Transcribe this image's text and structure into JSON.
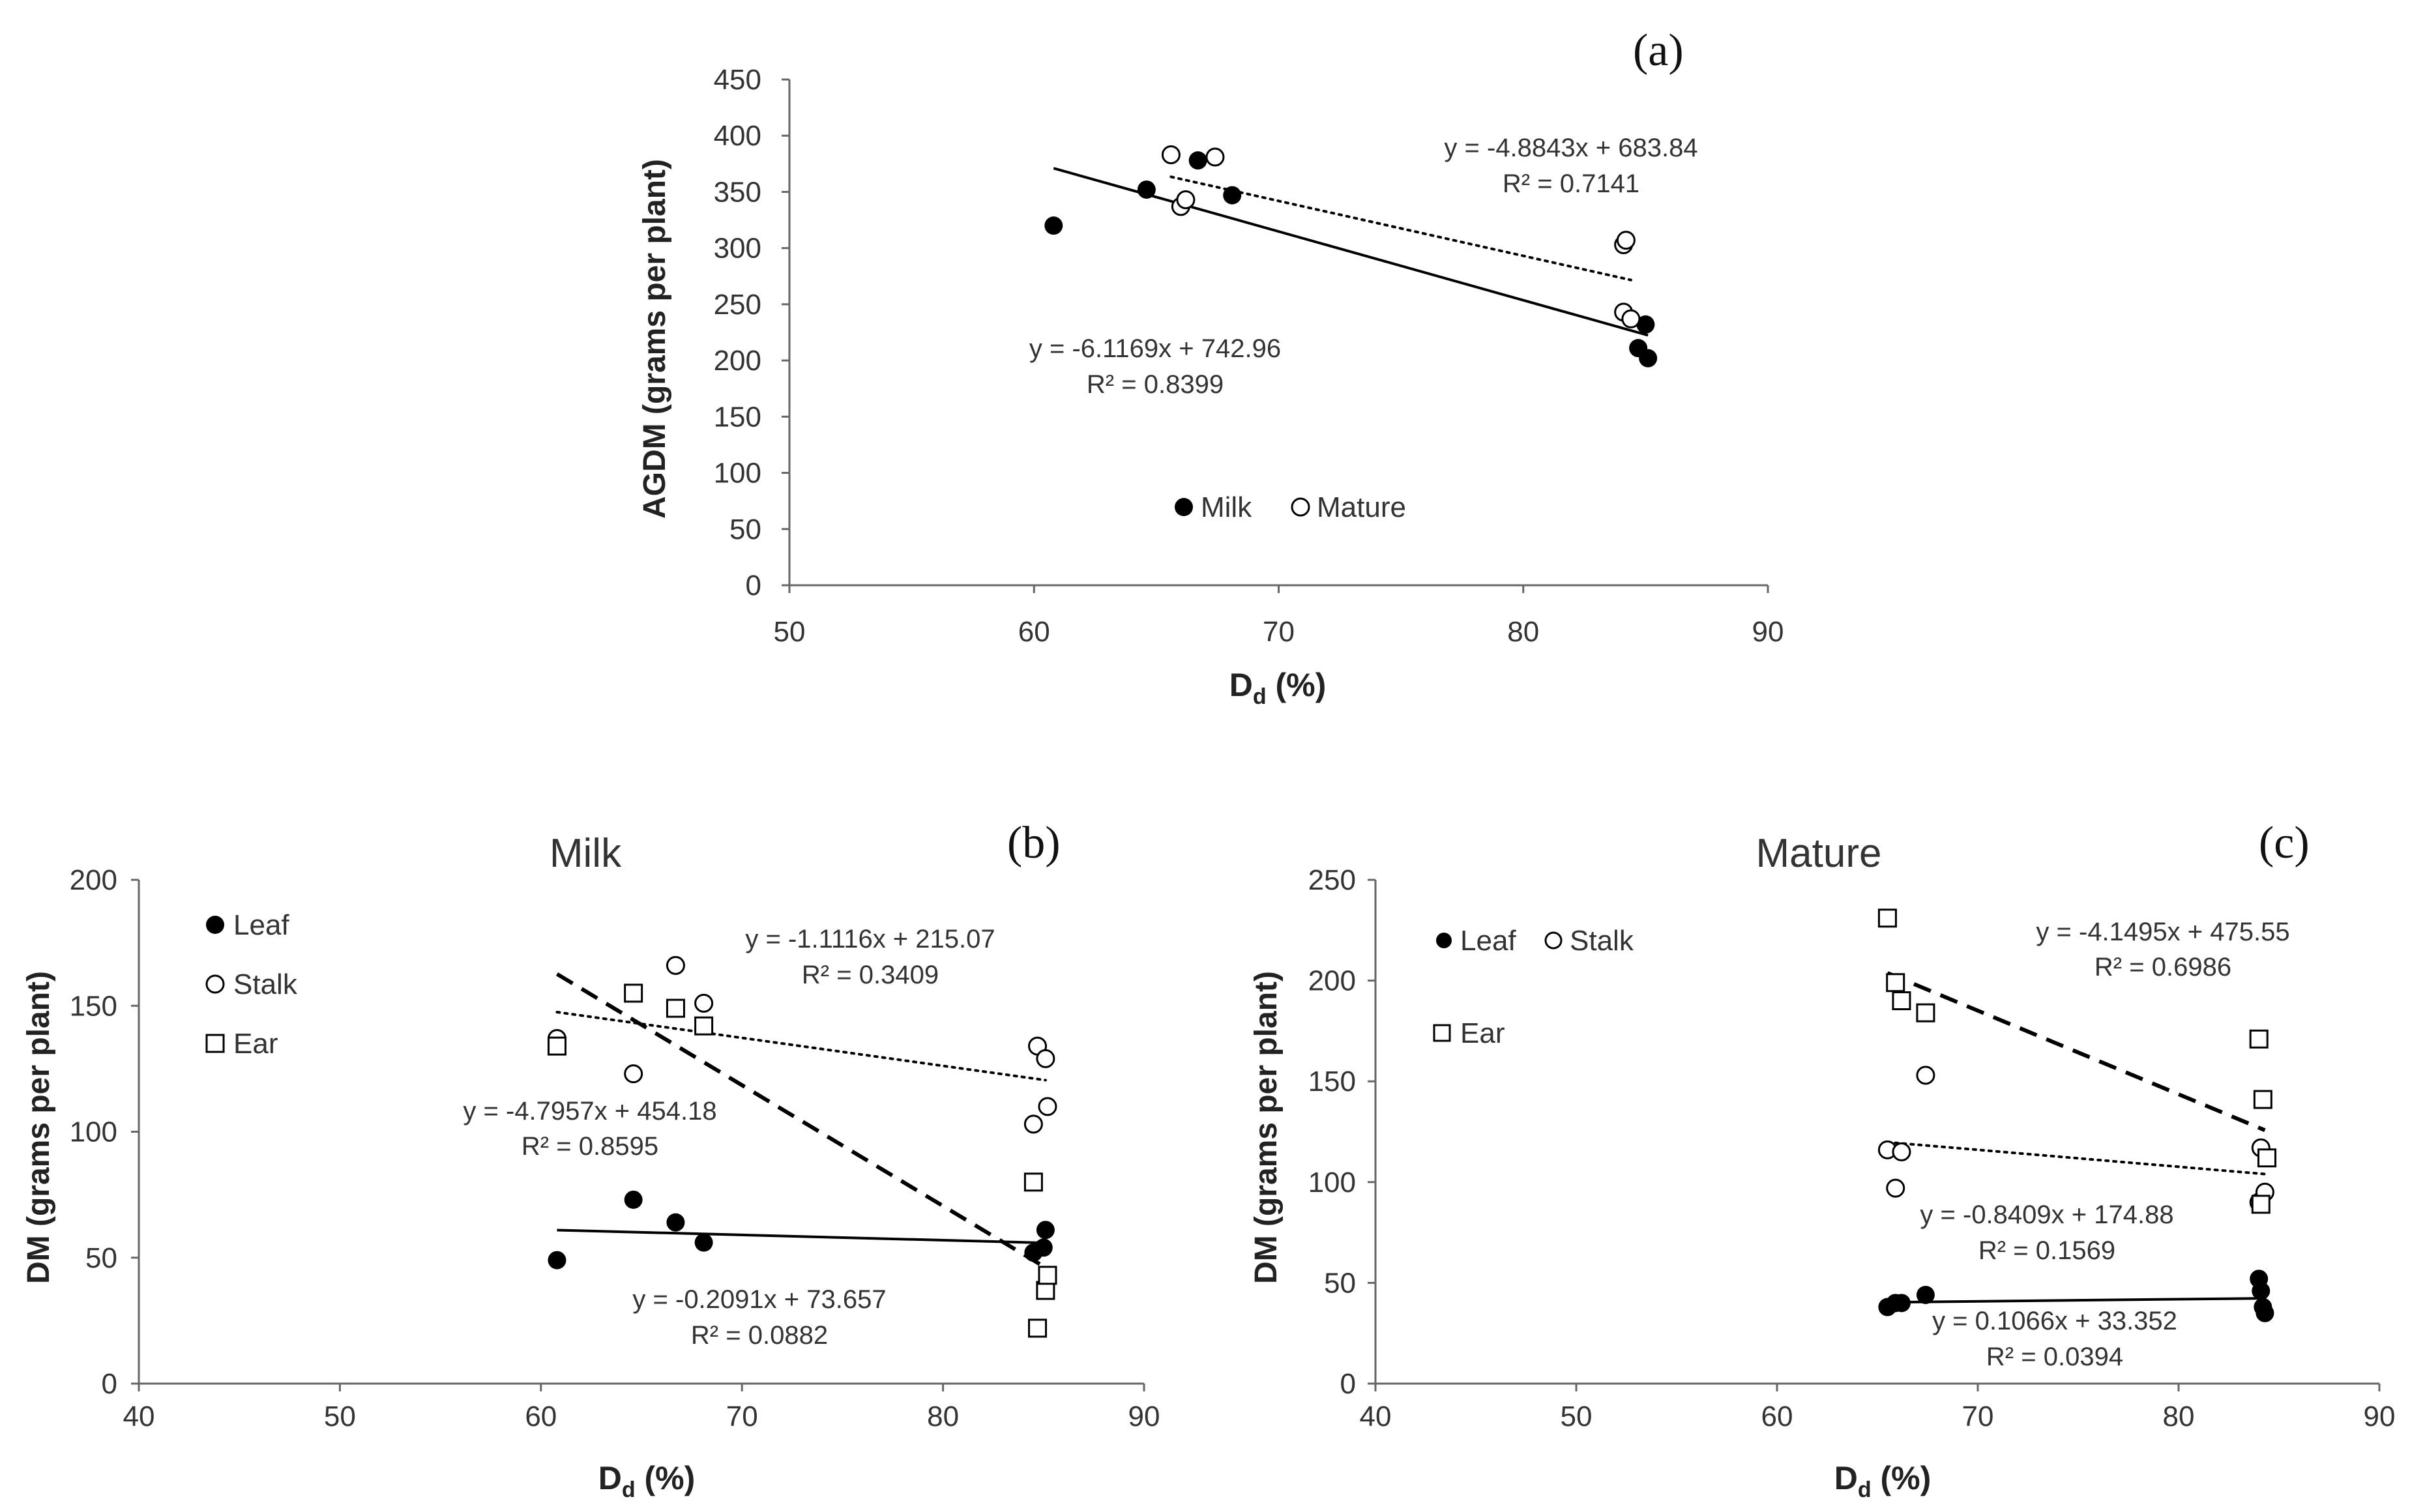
{
  "panel_labels": [
    "(a)",
    "(b)",
    "(c)"
  ],
  "chart_data": [
    {
      "panel": "(a)",
      "type": "scatter",
      "title": "",
      "xlabel_main": "D",
      "xlabel_sub": "d",
      "xlabel_rest": " (%)",
      "ylabel": "AGDM (grams per plant)",
      "xlim": [
        50,
        90
      ],
      "ylim": [
        0,
        450
      ],
      "xticks": [
        50,
        60,
        70,
        80,
        90
      ],
      "yticks": [
        0,
        50,
        100,
        150,
        200,
        250,
        300,
        350,
        400,
        450
      ],
      "legend": "bottom-inline",
      "series": [
        {
          "name": "Milk",
          "marker": "filled-circle",
          "points": [
            [
              60.8,
              320
            ],
            [
              64.6,
              352
            ],
            [
              66.7,
              378
            ],
            [
              68.1,
              347
            ],
            [
              84.7,
              211
            ],
            [
              85.0,
              232
            ],
            [
              85.1,
              202
            ]
          ],
          "trend": {
            "style": "solid",
            "x": [
              60.8,
              85.1
            ],
            "equation": "y = -6.1169x + 742.96",
            "r2": "R² = 0.8399"
          }
        },
        {
          "name": "Mature",
          "marker": "open-circle",
          "points": [
            [
              65.6,
              383
            ],
            [
              66.0,
              337
            ],
            [
              66.2,
              343
            ],
            [
              67.4,
              381
            ],
            [
              84.1,
              243
            ],
            [
              84.1,
              303
            ],
            [
              84.2,
              307
            ],
            [
              84.4,
              237
            ]
          ],
          "trend": {
            "style": "dotted",
            "x": [
              65.6,
              84.4
            ],
            "equation": "y = -4.8843x + 683.84",
            "r2": "R² = 0.7141"
          }
        }
      ]
    },
    {
      "panel": "(b)",
      "type": "scatter",
      "title": "Milk",
      "xlabel_main": "D",
      "xlabel_sub": "d",
      "xlabel_rest": " (%)",
      "ylabel": "DM (grams per plant)",
      "xlim": [
        40,
        90
      ],
      "ylim": [
        0,
        200
      ],
      "xticks": [
        40,
        50,
        60,
        70,
        80,
        90
      ],
      "yticks": [
        0,
        50,
        100,
        150,
        200
      ],
      "legend": "top-left",
      "series": [
        {
          "name": "Leaf",
          "marker": "filled-circle",
          "points": [
            [
              60.8,
              49
            ],
            [
              64.6,
              73
            ],
            [
              66.7,
              64
            ],
            [
              68.1,
              56
            ],
            [
              84.5,
              52
            ],
            [
              85.0,
              54
            ],
            [
              85.1,
              61
            ]
          ],
          "trend": {
            "style": "solid",
            "x": [
              60.8,
              85.1
            ],
            "equation": "y = -0.2091x + 73.657",
            "r2": "R² = 0.0882"
          }
        },
        {
          "name": "Stalk",
          "marker": "open-circle",
          "points": [
            [
              60.8,
              137
            ],
            [
              64.6,
              123
            ],
            [
              66.7,
              166
            ],
            [
              68.1,
              151
            ],
            [
              84.5,
              103
            ],
            [
              84.7,
              134
            ],
            [
              85.1,
              129
            ],
            [
              85.2,
              110
            ]
          ],
          "trend": {
            "style": "dotted",
            "x": [
              60.8,
              85.1
            ],
            "equation": "y = -1.1116x + 215.07",
            "r2": "R² = 0.3409"
          }
        },
        {
          "name": "Ear",
          "marker": "open-square",
          "points": [
            [
              60.8,
              134
            ],
            [
              64.6,
              155
            ],
            [
              66.7,
              149
            ],
            [
              68.1,
              142
            ],
            [
              84.5,
              80
            ],
            [
              84.7,
              22
            ],
            [
              85.1,
              37
            ],
            [
              85.2,
              43
            ]
          ],
          "trend": {
            "style": "dashed",
            "x": [
              60.8,
              85.1
            ],
            "equation": "y = -4.7957x + 454.18",
            "r2": "R² = 0.8595"
          }
        }
      ]
    },
    {
      "panel": "(c)",
      "type": "scatter",
      "title": "Mature",
      "xlabel_main": "D",
      "xlabel_sub": "d",
      "xlabel_rest": " (%)",
      "ylabel": "DM (grams per plant)",
      "xlim": [
        40,
        90
      ],
      "ylim": [
        0,
        250
      ],
      "xticks": [
        40,
        50,
        60,
        70,
        80,
        90
      ],
      "yticks": [
        0,
        50,
        100,
        150,
        200,
        250
      ],
      "legend": "top-left",
      "series": [
        {
          "name": "Leaf",
          "marker": "filled-circle",
          "points": [
            [
              65.5,
              38
            ],
            [
              65.9,
              40
            ],
            [
              66.2,
              40
            ],
            [
              67.4,
              44
            ],
            [
              84.0,
              52
            ],
            [
              84.1,
              46
            ],
            [
              84.2,
              38
            ],
            [
              84.3,
              35
            ]
          ],
          "trend": {
            "style": "solid",
            "x": [
              65.5,
              84.3
            ],
            "equation": "y = 0.1066x + 33.352",
            "r2": "R² = 0.0394"
          }
        },
        {
          "name": "Stalk",
          "marker": "open-circle",
          "points": [
            [
              65.5,
              116
            ],
            [
              65.9,
              97
            ],
            [
              66.2,
              115
            ],
            [
              67.4,
              153
            ],
            [
              84.0,
              90
            ],
            [
              84.1,
              117
            ],
            [
              84.3,
              95
            ]
          ],
          "trend": {
            "style": "dotted",
            "x": [
              65.5,
              84.3
            ],
            "equation": "y = -0.8409x + 174.88",
            "r2": "R² = 0.1569"
          }
        },
        {
          "name": "Ear",
          "marker": "open-square",
          "points": [
            [
              65.5,
              231
            ],
            [
              65.9,
              199
            ],
            [
              66.2,
              190
            ],
            [
              67.4,
              184
            ],
            [
              84.0,
              171
            ],
            [
              84.1,
              89
            ],
            [
              84.2,
              141
            ],
            [
              84.4,
              112
            ]
          ],
          "trend": {
            "style": "dashed",
            "x": [
              65.5,
              84.3
            ],
            "equation": "y = -4.1495x + 475.55",
            "r2": "R² = 0.6986"
          }
        }
      ]
    }
  ]
}
